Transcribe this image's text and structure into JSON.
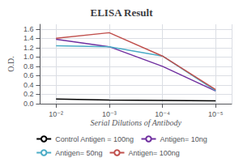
{
  "chart_data": {
    "type": "line",
    "title": "ELISA Result",
    "xlabel": "Serial Dilutions of Antibody",
    "ylabel": "O.D.",
    "x": [
      0.01,
      0.001,
      0.0001,
      1e-05
    ],
    "series": [
      {
        "name": "Control Antigen = 100ng",
        "color": "#000000",
        "values": [
          0.1,
          0.08,
          0.07,
          0.06
        ]
      },
      {
        "name": "Antigen= 10ng",
        "color": "#7030A0",
        "values": [
          1.38,
          1.22,
          0.8,
          0.27
        ]
      },
      {
        "name": "Antigen= 50ng",
        "color": "#4BACC6",
        "values": [
          1.24,
          1.22,
          1.02,
          0.28
        ]
      },
      {
        "name": "Antigen= 100ng",
        "color": "#C0504D",
        "values": [
          1.4,
          1.52,
          1.02,
          0.3
        ]
      }
    ],
    "log": "x",
    "xlim": [
      0.02,
      5e-06
    ],
    "xticks": [
      {
        "value": 0.01,
        "label": "10⁻²"
      },
      {
        "value": 0.001,
        "label": "10⁻³"
      },
      {
        "value": 0.0001,
        "label": "10⁻⁴"
      },
      {
        "value": 1e-05,
        "label": "10⁻⁵"
      }
    ],
    "ylim": [
      0,
      1.7
    ],
    "yticks": [
      {
        "value": 0,
        "label": "0.0"
      },
      0.2,
      0.4,
      0.6,
      0.8,
      {
        "value": 1.0,
        "label": "1.0"
      },
      1.2,
      1.4,
      1.6
    ],
    "grid": true,
    "legend": "bottom"
  }
}
